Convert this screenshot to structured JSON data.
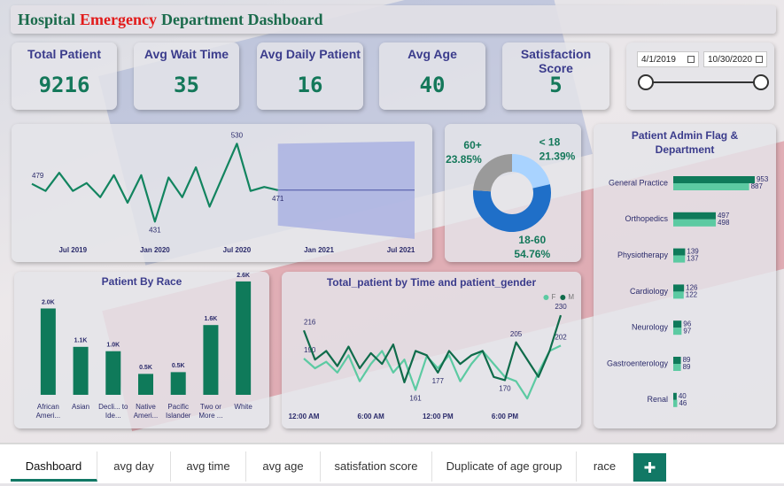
{
  "header": {
    "title": [
      "Hospital",
      "Emergency",
      "Department Dashboard"
    ]
  },
  "kpis": [
    {
      "label": "Total Patient",
      "value": 9216
    },
    {
      "label": "Avg Wait Time",
      "value": 35
    },
    {
      "label": "Avg Daily Patient",
      "value": 16
    },
    {
      "label": "Avg Age",
      "value": 40
    },
    {
      "label": "Satisfaction Score",
      "value": 5
    }
  ],
  "date_range": {
    "start": "4/1/2019",
    "end": "10/30/2020"
  },
  "chart_data": [
    {
      "type": "line",
      "x": [
        "2019-04",
        "2019-05",
        "2019-06",
        "2019-07",
        "2019-08",
        "2019-09",
        "2019-10",
        "2019-11",
        "2019-12",
        "2020-01",
        "2020-02",
        "2020-03",
        "2020-04",
        "2020-05",
        "2020-06",
        "2020-07",
        "2020-08",
        "2020-09",
        "2020-10"
      ],
      "series": [
        {
          "color": "#12845f",
          "values": [
            479,
            470,
            493,
            470,
            480,
            462,
            490,
            455,
            490,
            431,
            487,
            462,
            500,
            450,
            490,
            530,
            470,
            475,
            471
          ],
          "value_labels": [
            "479",
            null,
            null,
            null,
            null,
            null,
            null,
            null,
            null,
            "431",
            null,
            null,
            null,
            null,
            null,
            "530",
            null,
            null,
            "471"
          ]
        }
      ],
      "xlim": [
        "2019-04",
        "2021-08"
      ],
      "ylim": [
        410,
        545
      ],
      "xticks": [
        {
          "value": "2019-07",
          "label": "Jul 2019"
        },
        {
          "value": "2020-01",
          "label": "Jan 2020"
        },
        {
          "value": "2020-07",
          "label": "Jul 2020"
        },
        {
          "value": "2021-01",
          "label": "Jan 2021"
        },
        {
          "value": "2021-07",
          "label": "Jul 2021"
        }
      ],
      "forecast": {
        "color": "#aab2e2",
        "line_color": "#4a52a3",
        "x": [
          "2020-10",
          "2021-08"
        ],
        "values": [
          471,
          471
        ],
        "upper": [
          530,
          533
        ],
        "lower": [
          426,
          409
        ]
      }
    },
    {
      "type": "pie",
      "donut": true,
      "categories": [
        "< 18",
        "18-60",
        "60+"
      ],
      "values": [
        21.39,
        54.76,
        23.85
      ],
      "value_labels": [
        "21.39%",
        "54.76%",
        "23.85%"
      ],
      "colors": [
        "#a9d3ff",
        "#1f6fc8",
        "#9a9a9a"
      ]
    },
    {
      "type": "bar",
      "orientation": "horizontal",
      "title": "Patient Admin Flag & Department",
      "categories": [
        "General Practice",
        "Orthopedics",
        "Physiotherapy",
        "Cardiology",
        "Neurology",
        "Gastroenterology",
        "Renal"
      ],
      "series": [
        {
          "color": "#0f7a5a",
          "values": [
            953,
            497,
            139,
            126,
            96,
            89,
            40
          ]
        },
        {
          "color": "#5ccaa2",
          "values": [
            887,
            498,
            137,
            122,
            97,
            89,
            46
          ]
        }
      ],
      "xlim": [
        0,
        1000
      ]
    },
    {
      "type": "bar",
      "title": "Patient By Race",
      "categories": [
        "African Ameri...",
        "Asian",
        "Decli... to Ide...",
        "Native Ameri...",
        "Pacific Islander",
        "Two or More ...",
        "White"
      ],
      "values": [
        1980,
        1100,
        1000,
        480,
        520,
        1600,
        2600
      ],
      "value_labels": [
        "2.0K",
        "1.1K",
        "1.0K",
        "0.5K",
        "0.5K",
        "1.6K",
        "2.6K"
      ],
      "color": "#0f7a5a",
      "ylim": [
        0,
        2700
      ]
    },
    {
      "type": "line",
      "title": "Total_patient by Time and patient_gender",
      "x": [
        0,
        1,
        2,
        3,
        4,
        5,
        6,
        7,
        8,
        9,
        10,
        11,
        12,
        13,
        14,
        15,
        16,
        17,
        18,
        19,
        20,
        21,
        22,
        23
      ],
      "series": [
        {
          "name": "F",
          "color": "#5ccaa2",
          "values": [
            190,
            181,
            187,
            177,
            193,
            169,
            185,
            197,
            177,
            189,
            161,
            192,
            181,
            193,
            169,
            185,
            197,
            185,
            173,
            169,
            153,
            177,
            197,
            202
          ],
          "value_labels": [
            "190",
            null,
            null,
            null,
            null,
            null,
            null,
            null,
            null,
            null,
            "161",
            null,
            null,
            null,
            null,
            null,
            null,
            null,
            null,
            null,
            null,
            null,
            null,
            "202"
          ]
        },
        {
          "name": "M",
          "color": "#0f6b4a",
          "values": [
            216,
            189,
            197,
            183,
            201,
            181,
            195,
            185,
            203,
            168,
            197,
            193,
            177,
            197,
            185,
            193,
            197,
            173,
            170,
            205,
            189,
            173,
            197,
            230
          ],
          "value_labels": [
            "216",
            null,
            null,
            null,
            null,
            null,
            null,
            null,
            null,
            null,
            null,
            null,
            "177",
            null,
            null,
            null,
            null,
            null,
            "170",
            "205",
            null,
            null,
            null,
            "230"
          ]
        }
      ],
      "xlim": [
        0,
        23
      ],
      "ylim": [
        145,
        235
      ],
      "xticks": [
        {
          "value": 0,
          "label": "12:00 AM"
        },
        {
          "value": 6,
          "label": "6:00 AM"
        },
        {
          "value": 12,
          "label": "12:00 PM"
        },
        {
          "value": 18,
          "label": "6:00 PM"
        }
      ],
      "legend": "top-right"
    }
  ],
  "tabs": [
    "Dashboard",
    "avg day",
    "avg time",
    "avg age",
    "satisfation score",
    "Duplicate of age group",
    "race"
  ]
}
